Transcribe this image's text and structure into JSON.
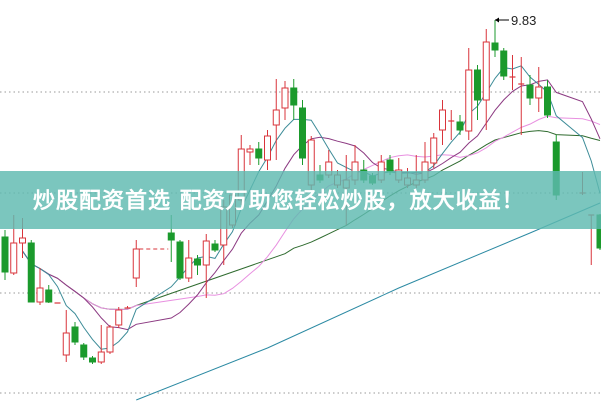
{
  "chart_data": {
    "type": "candlestick",
    "title": "",
    "xlabel": "",
    "ylabel": "",
    "ylim": [
      6.05,
      10.03
    ],
    "grid": "horizontal-dotted",
    "grid_levels": [
      9.11,
      8.1,
      7.1,
      6.1
    ],
    "up_color": "#d9343b",
    "down_color": "#1b9a2c",
    "annotation": {
      "label": "9.83",
      "index": 56,
      "price": 9.83
    },
    "ma_colors": {
      "ma5": "#3d8c98",
      "ma10": "#8c3a82",
      "ma20": "#e890e0",
      "ma30": "#2f6b2f",
      "ma_long": "#2c8aa3"
    },
    "candles": [
      [
        7.66,
        7.31,
        7.73,
        7.23
      ],
      [
        7.3,
        7.6,
        7.88,
        7.28
      ],
      [
        7.6,
        7.65,
        7.85,
        7.45
      ],
      [
        7.6,
        7.01,
        7.63,
        7.01
      ],
      [
        7.01,
        7.15,
        7.35,
        6.98
      ],
      [
        7.13,
        7.01,
        7.18,
        7.0
      ],
      [
        7.0,
        7.0,
        7.0,
        7.0
      ],
      [
        6.48,
        6.7,
        6.93,
        6.41
      ],
      [
        6.76,
        6.61,
        6.81,
        6.58
      ],
      [
        6.58,
        6.46,
        6.6,
        6.43
      ],
      [
        6.45,
        6.41,
        6.47,
        6.39
      ],
      [
        6.41,
        6.51,
        6.78,
        6.39
      ],
      [
        6.51,
        6.76,
        6.78,
        6.49
      ],
      [
        6.78,
        6.93,
        6.96,
        6.75
      ],
      [
        6.95,
        6.95,
        6.97,
        6.95
      ],
      [
        7.25,
        7.54,
        7.63,
        7.16
      ],
      null,
      null,
      null,
      [
        7.7,
        7.63,
        7.88,
        7.41
      ],
      [
        7.61,
        7.25,
        7.63,
        7.23
      ],
      [
        7.25,
        7.45,
        7.63,
        7.21
      ],
      [
        7.44,
        7.38,
        7.48,
        7.28
      ],
      [
        7.38,
        7.62,
        7.69,
        7.05
      ],
      [
        7.59,
        7.53,
        7.63,
        7.51
      ],
      [
        7.58,
        7.96,
        8.03,
        7.38
      ],
      [
        7.78,
        8.08,
        8.11,
        7.75
      ],
      [
        8.03,
        8.54,
        8.68,
        7.98
      ],
      [
        8.51,
        8.54,
        8.58,
        8.38
      ],
      [
        8.54,
        8.45,
        8.61,
        8.38
      ],
      [
        8.43,
        8.67,
        8.73,
        8.33
      ],
      [
        8.78,
        8.93,
        9.24,
        8.43
      ],
      [
        8.95,
        9.15,
        9.22,
        8.83
      ],
      [
        9.15,
        8.98,
        9.24,
        8.83
      ],
      [
        8.95,
        8.45,
        9.03,
        8.38
      ],
      [
        8.18,
        8.63,
        8.67,
        8.13
      ],
      [
        8.28,
        8.23,
        8.38,
        8.2
      ],
      [
        8.28,
        8.41,
        8.53,
        8.25
      ],
      [
        8.18,
        8.28,
        8.33,
        8.15
      ],
      [
        8.15,
        8.23,
        8.48,
        7.78
      ],
      [
        8.23,
        8.41,
        8.58,
        8.18
      ],
      [
        8.33,
        8.23,
        8.43,
        8.2
      ],
      [
        8.27,
        8.2,
        8.3,
        8.18
      ],
      [
        8.23,
        8.41,
        8.48,
        8.2
      ],
      [
        8.43,
        8.31,
        8.48,
        8.28
      ],
      [
        8.23,
        8.33,
        8.45,
        8.2
      ],
      [
        8.18,
        8.25,
        8.35,
        8.15
      ],
      [
        8.18,
        8.23,
        8.48,
        8.15
      ],
      [
        8.23,
        8.41,
        8.61,
        8.2
      ],
      [
        8.4,
        8.65,
        8.7,
        8.35
      ],
      [
        8.73,
        8.93,
        9.03,
        8.58
      ],
      [
        8.82,
        8.82,
        8.93,
        8.63
      ],
      [
        8.81,
        8.73,
        8.88,
        8.68
      ],
      [
        8.72,
        9.33,
        9.55,
        8.63
      ],
      [
        9.33,
        9.03,
        9.38,
        8.83
      ],
      [
        9.03,
        9.61,
        9.74,
        8.73
      ],
      [
        9.6,
        9.53,
        9.83,
        9.46
      ],
      [
        9.52,
        9.27,
        9.55,
        9.23
      ],
      [
        9.26,
        9.26,
        9.48,
        9.13
      ],
      [
        9.19,
        9.19,
        9.46,
        8.68
      ],
      [
        9.18,
        9.05,
        9.28,
        8.98
      ],
      [
        9.05,
        9.16,
        9.36,
        8.91
      ],
      [
        9.16,
        8.88,
        9.23,
        8.85
      ],
      [
        8.61,
        8.08,
        8.68,
        8.03
      ],
      null,
      null,
      [
        8.1,
        8.1,
        8.31,
        8.08
      ],
      [
        7.88,
        7.88,
        7.88,
        7.38
      ],
      [
        7.88,
        7.55,
        7.89,
        7.53
      ]
    ],
    "ma_long": [
      [
        15,
        6.03
      ],
      [
        30,
        6.55
      ],
      [
        45,
        7.15
      ],
      [
        60,
        7.7
      ],
      [
        68,
        8.0
      ]
    ]
  },
  "banner": {
    "text": "炒股配资首选 配资万助您轻松炒股，放大收益！",
    "color": "#5ebab0"
  }
}
